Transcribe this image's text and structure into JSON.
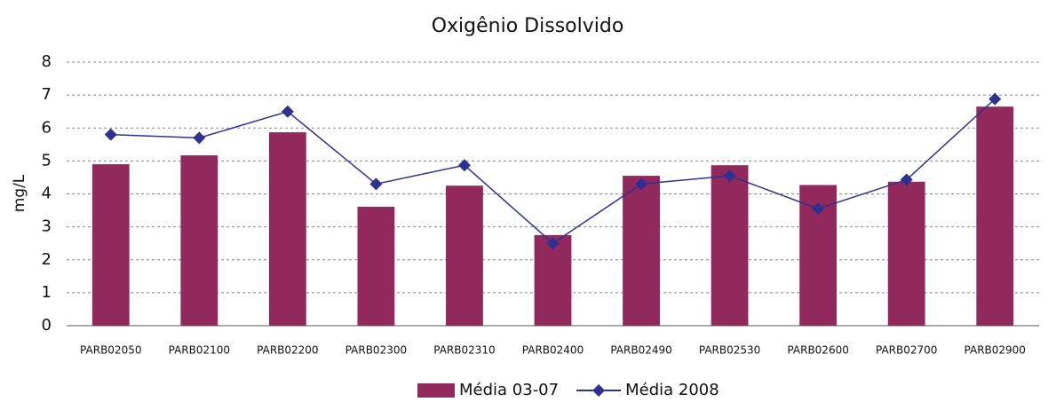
{
  "chart_data": {
    "type": "bar",
    "title": "Oxigênio Dissolvido",
    "y_label": "mg/L",
    "categories": [
      "PARB02050",
      "PARB02100",
      "PARB02200",
      "PARB02300",
      "PARB02310",
      "PARB02400",
      "PARB02490",
      "PARB02530",
      "PARB02600",
      "PARB02700",
      "PARB02900"
    ],
    "series": [
      {
        "name": "Média 03-07",
        "type": "bar",
        "color": "#91295c",
        "values": [
          4.9,
          5.17,
          5.87,
          3.61,
          4.25,
          2.75,
          4.55,
          4.87,
          4.27,
          4.37,
          6.65
        ]
      },
      {
        "name": "Média 2008",
        "type": "line",
        "color": "#2e3192",
        "values": [
          5.8,
          5.7,
          6.5,
          4.3,
          4.87,
          2.5,
          4.3,
          4.55,
          3.55,
          4.43,
          6.88
        ]
      }
    ],
    "ylim": [
      0,
      8
    ],
    "yticks": [
      0,
      1,
      2,
      3,
      4,
      5,
      6,
      7,
      8
    ],
    "grid": true
  }
}
